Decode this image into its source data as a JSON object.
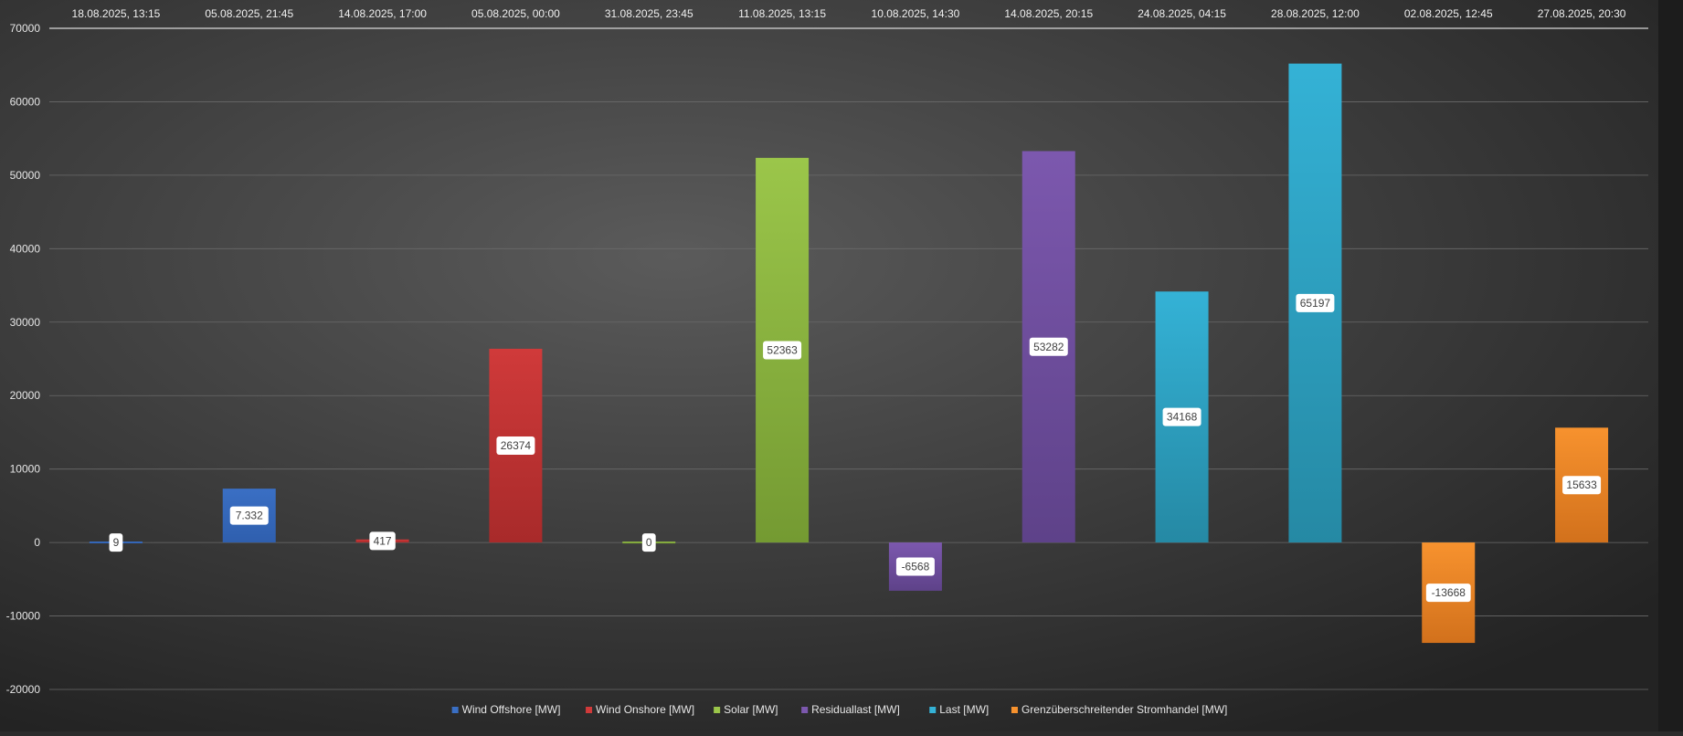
{
  "chart_data": {
    "type": "bar",
    "title": "",
    "xlabel": "",
    "ylabel": "",
    "ylim": [
      -20000,
      70000
    ],
    "yticks": [
      70000,
      60000,
      50000,
      40000,
      30000,
      20000,
      10000,
      0,
      -10000,
      -20000
    ],
    "grid": true,
    "legend_position": "bottom",
    "categories": [
      "18.08.2025, 13:15",
      "05.08.2025, 21:45",
      "14.08.2025, 17:00",
      "05.08.2025, 00:00",
      "31.08.2025, 23:45",
      "11.08.2025, 13:15",
      "10.08.2025, 14:30",
      "14.08.2025, 20:15",
      "24.08.2025, 04:15",
      "28.08.2025, 12:00",
      "02.08.2025, 12:45",
      "27.08.2025, 20:30"
    ],
    "values": [
      9,
      7332,
      417,
      26374,
      0,
      52363,
      -6568,
      53282,
      34168,
      65197,
      -13668,
      15633
    ],
    "data_labels": [
      "9",
      "7.332",
      "417",
      "26374",
      "0",
      "52363",
      "-6568",
      "53282",
      "34168",
      "65197",
      "-13668",
      "15633"
    ],
    "bar_series": [
      0,
      0,
      1,
      1,
      2,
      2,
      3,
      3,
      4,
      4,
      5,
      5
    ],
    "series": [
      {
        "name": "Wind Offshore [MW]",
        "color": "#3a6fc4",
        "color_dark": "#2f5fae"
      },
      {
        "name": "Wind Onshore [MW]",
        "color": "#d03a3a",
        "color_dark": "#a82a2a"
      },
      {
        "name": "Solar [MW]",
        "color": "#9bc64a",
        "color_dark": "#749a32"
      },
      {
        "name": "Residuallast [MW]",
        "color": "#7c58ae",
        "color_dark": "#5e4289"
      },
      {
        "name": "Last [MW]",
        "color": "#34b2d6",
        "color_dark": "#2589a4"
      },
      {
        "name": "Grenzüberschreitender Stromhandel [MW]",
        "color": "#f7922e",
        "color_dark": "#d2711c"
      }
    ]
  }
}
